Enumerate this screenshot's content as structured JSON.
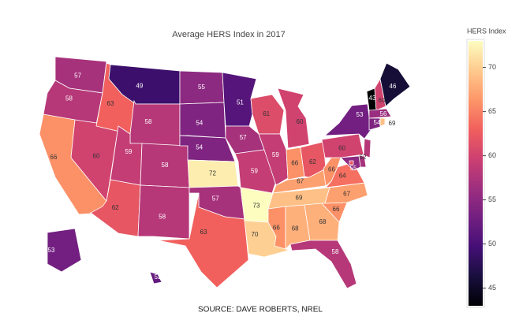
{
  "chart_data": {
    "type": "choropleth",
    "title": "Average HERS Index in 2017",
    "source": "SOURCE: DAVE ROBERTS, NREL",
    "colorbar_title": "HERS Index",
    "locations": [
      "WA",
      "OR",
      "CA",
      "NV",
      "ID",
      "MT",
      "WY",
      "UT",
      "AZ",
      "CO",
      "NM",
      "ND",
      "SD",
      "NE",
      "KS",
      "OK",
      "TX",
      "MN",
      "IA",
      "MO",
      "AR",
      "LA",
      "WI",
      "IL",
      "MI",
      "IN",
      "OH",
      "KY",
      "TN",
      "MS",
      "AL",
      "GA",
      "FL",
      "SC",
      "NC",
      "VA",
      "WV",
      "PA",
      "NY",
      "VT",
      "NH",
      "ME",
      "MA",
      "CT",
      "RI",
      "NJ",
      "DE",
      "MD",
      "DC",
      "AK",
      "HI"
    ],
    "values": [
      57,
      58,
      66,
      60,
      63,
      49,
      58,
      59,
      62,
      58,
      58,
      55,
      54,
      54,
      72,
      57,
      63,
      51,
      57,
      59,
      73,
      70,
      61,
      59,
      60,
      66,
      62,
      67,
      69,
      66,
      68,
      68,
      58,
      66,
      67,
      64,
      66,
      60,
      53,
      43,
      60,
      46,
      56,
      54,
      69,
      58,
      57,
      55,
      62,
      53,
      52
    ],
    "colorscale": [
      "#000004",
      "#180f3d",
      "#440f76",
      "#721f81",
      "#9e2f7f",
      "#cd4071",
      "#f1605d",
      "#fd9668",
      "#feca8d",
      "#fcfdbf"
    ],
    "zlim": [
      43,
      73
    ],
    "zticks": [
      45,
      50,
      55,
      60,
      65,
      70
    ]
  }
}
